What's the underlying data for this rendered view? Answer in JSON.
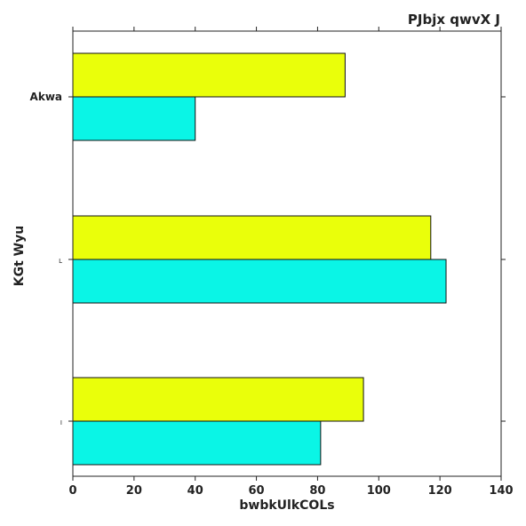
{
  "chart_data": {
    "type": "bar",
    "orientation": "horizontal",
    "title": "PJbjx qwvX J",
    "xlabel": "bwbkUlkCOLs",
    "ylabel": "KGt Wyu",
    "categories": [
      "Akwa",
      "L",
      "I"
    ],
    "series": [
      {
        "color": "#eaff0a",
        "values": [
          89,
          117,
          95
        ]
      },
      {
        "color": "#0af5e6",
        "values": [
          40,
          122,
          81
        ]
      }
    ],
    "xlim": [
      0,
      140
    ],
    "xticks": [
      0,
      20,
      40,
      60,
      80,
      100,
      120,
      140
    ],
    "grid": false,
    "legend": "none"
  }
}
